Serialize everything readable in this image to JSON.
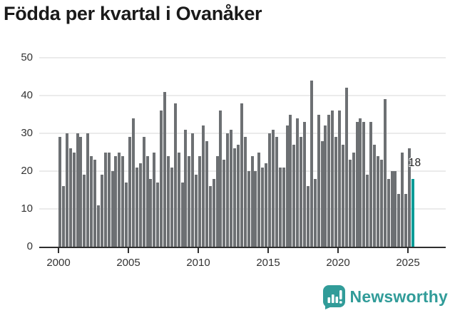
{
  "title": "Födda per kvartal i Ovanåker",
  "annotation": {
    "last_value_label": "18"
  },
  "footer": {
    "brand": "Newsworthy"
  },
  "colors": {
    "bar": "#6d7073",
    "highlight": "#0b9c97",
    "axis": "#2e2e2e",
    "grid": "#ebebeb",
    "tick_text": "#333333",
    "title_text": "#1a1a1a",
    "logo": "#319c99"
  },
  "chart_data": {
    "type": "bar",
    "title": "Födda per kvartal i Ovanåker",
    "x_unit": "quarter",
    "start": "2000-Q1",
    "end": "2025-Q2",
    "values": [
      29,
      16,
      30,
      26,
      25,
      30,
      29,
      19,
      30,
      24,
      23,
      11,
      19,
      25,
      25,
      20,
      24,
      25,
      24,
      17,
      29,
      34,
      21,
      22,
      29,
      24,
      18,
      25,
      17,
      36,
      41,
      24,
      21,
      38,
      25,
      17,
      31,
      24,
      30,
      19,
      24,
      32,
      28,
      16,
      18,
      24,
      36,
      23,
      30,
      31,
      26,
      27,
      38,
      29,
      20,
      24,
      20,
      25,
      21,
      22,
      30,
      31,
      29,
      21,
      21,
      32,
      35,
      27,
      34,
      29,
      33,
      16,
      44,
      18,
      35,
      28,
      32,
      35,
      36,
      29,
      36,
      27,
      42,
      23,
      25,
      33,
      34,
      33,
      19,
      33,
      27,
      24,
      23,
      39,
      18,
      20,
      20,
      14,
      25,
      14,
      26,
      18
    ],
    "highlight": {
      "index": 101,
      "label": "18"
    },
    "ylim": [
      0,
      50
    ],
    "yticks": [
      0,
      10,
      20,
      30,
      40,
      50
    ],
    "xticks": [
      2000,
      2005,
      2010,
      2015,
      2020,
      2025
    ],
    "grid": "horizontal",
    "legend": "none",
    "xlabel": "",
    "ylabel": ""
  }
}
